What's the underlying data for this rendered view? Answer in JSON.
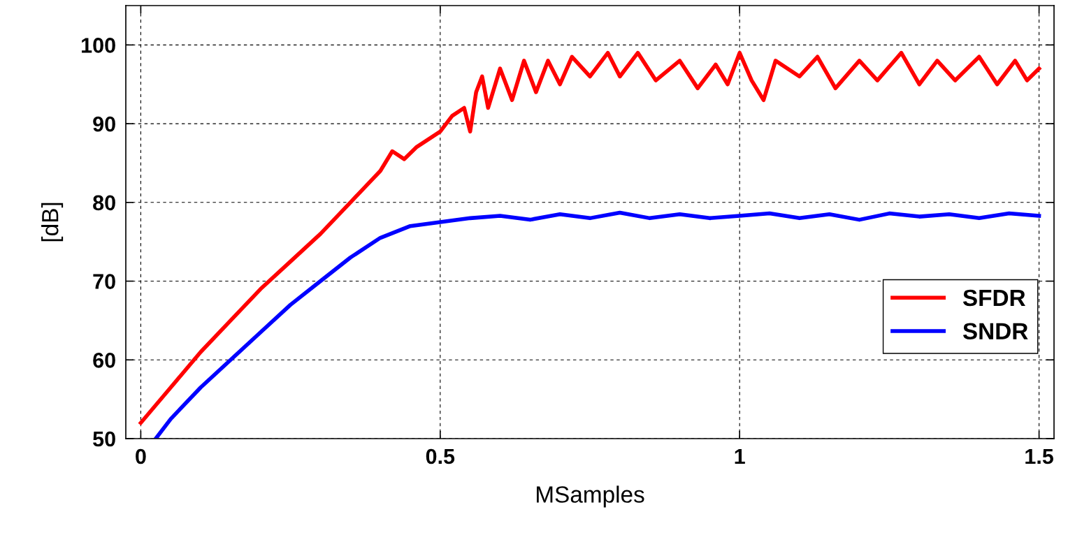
{
  "chart_data": {
    "type": "line",
    "xlabel": "MSamples",
    "ylabel": "[dB]",
    "xlim": [
      -0.025,
      1.525
    ],
    "ylim": [
      50,
      105
    ],
    "xticks": [
      0,
      0.5,
      1,
      1.5
    ],
    "yticks": [
      50,
      60,
      70,
      80,
      90,
      100
    ],
    "grid": true,
    "legend": "bottom right",
    "line_style": "solid",
    "series": [
      {
        "name": "SFDR",
        "color": "#ff0000",
        "x": [
          0,
          0.05,
          0.1,
          0.15,
          0.2,
          0.25,
          0.3,
          0.35,
          0.4,
          0.42,
          0.44,
          0.46,
          0.48,
          0.5,
          0.52,
          0.54,
          0.55,
          0.56,
          0.57,
          0.58,
          0.6,
          0.62,
          0.64,
          0.66,
          0.68,
          0.7,
          0.72,
          0.75,
          0.78,
          0.8,
          0.83,
          0.86,
          0.9,
          0.93,
          0.96,
          0.98,
          1.0,
          1.02,
          1.04,
          1.06,
          1.1,
          1.13,
          1.16,
          1.2,
          1.23,
          1.27,
          1.3,
          1.33,
          1.36,
          1.4,
          1.43,
          1.46,
          1.48,
          1.5
        ],
        "values": [
          52,
          56.5,
          61,
          65,
          69,
          72.5,
          76,
          80,
          84,
          86.5,
          85.5,
          87,
          88,
          89,
          91,
          92,
          89,
          94,
          96,
          92,
          97,
          93,
          98,
          94,
          98,
          95,
          98.5,
          96,
          99,
          96,
          99,
          95.5,
          98,
          94.5,
          97.5,
          95,
          99,
          95.5,
          93,
          98,
          96,
          98.5,
          94.5,
          98,
          95.5,
          99,
          95,
          98,
          95.5,
          98.5,
          95,
          98,
          95.5,
          97
        ]
      },
      {
        "name": "SNDR",
        "color": "#0000ff",
        "x": [
          0.025,
          0.05,
          0.1,
          0.15,
          0.2,
          0.25,
          0.3,
          0.35,
          0.4,
          0.45,
          0.5,
          0.55,
          0.6,
          0.65,
          0.7,
          0.75,
          0.8,
          0.85,
          0.9,
          0.95,
          1.0,
          1.05,
          1.1,
          1.15,
          1.2,
          1.25,
          1.3,
          1.35,
          1.4,
          1.45,
          1.5
        ],
        "values": [
          50,
          52.5,
          56.5,
          60,
          63.5,
          67,
          70,
          73,
          75.5,
          77,
          77.5,
          78,
          78.3,
          77.8,
          78.5,
          78,
          78.7,
          78,
          78.5,
          78,
          78.3,
          78.6,
          78,
          78.5,
          77.8,
          78.6,
          78.2,
          78.5,
          78,
          78.6,
          78.3
        ]
      }
    ]
  }
}
